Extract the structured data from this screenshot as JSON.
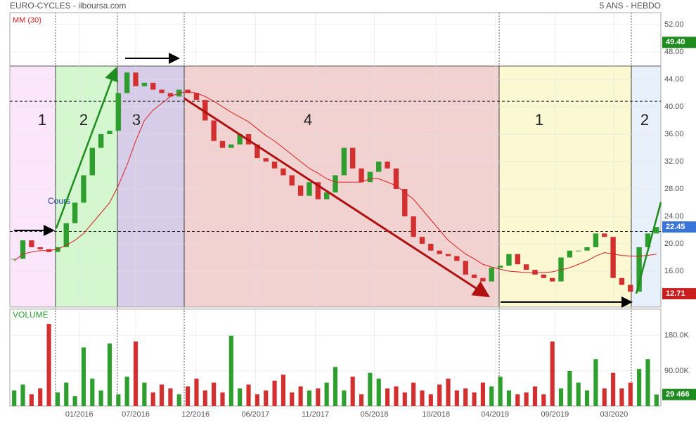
{
  "chart_data": [
    {
      "type": "candlestick",
      "title": "EURO-CYCLES - ilboursa.com",
      "subtitle": "5 ANS - HEBDO",
      "xlim": [
        0,
        75
      ],
      "xticks": [
        {
          "value": 8.0,
          "label": "01/2016"
        },
        {
          "value": 14.5,
          "label": "07/2016"
        },
        {
          "value": 21.4,
          "label": "12/2016"
        },
        {
          "value": 28.3,
          "label": "06/2017"
        },
        {
          "value": 35.2,
          "label": "11/2017"
        },
        {
          "value": 42.0,
          "label": "05/2018"
        },
        {
          "value": 49.1,
          "label": "10/2018"
        },
        {
          "value": 55.9,
          "label": "04/2019"
        },
        {
          "value": 62.8,
          "label": "09/2019"
        },
        {
          "value": 69.6,
          "label": "03/2020"
        }
      ],
      "ylim": [
        10.77,
        53.74
      ],
      "yticks": [
        {
          "value": 16,
          "label": "16.00"
        },
        {
          "value": 20,
          "label": "20.00"
        },
        {
          "value": 24,
          "label": "24.00"
        },
        {
          "value": 28,
          "label": "28.00"
        },
        {
          "value": 32,
          "label": "32.00"
        },
        {
          "value": 36,
          "label": "36.00"
        },
        {
          "value": 40,
          "label": "40.00"
        },
        {
          "value": 44,
          "label": "44.00"
        },
        {
          "value": 48,
          "label": "48.00"
        },
        {
          "value": 52,
          "label": "52.00"
        }
      ],
      "series": [
        {
          "name": "Cours",
          "color": "#2e9e2e",
          "down_color": "#d23030",
          "values": [
            17.8,
            20.5,
            19.5,
            19.2,
            18.8,
            19.5,
            23,
            26,
            30,
            34,
            36,
            36.5,
            42,
            45,
            43,
            43.5,
            42.5,
            42,
            41.5,
            42.5,
            42,
            41,
            38,
            35,
            34,
            34.5,
            36,
            34.5,
            32.5,
            32,
            31,
            30,
            28.5,
            27,
            29,
            26.5,
            27.5,
            30,
            34,
            31,
            29,
            30.5,
            32,
            31,
            28,
            24,
            21,
            20,
            19,
            18.5,
            18.2,
            17.5,
            15.5,
            15,
            14.5,
            16.5,
            16.8,
            18.5,
            17,
            16.2,
            15.5,
            15,
            14.5,
            18,
            19,
            19,
            19.5,
            21.5,
            21,
            15,
            14,
            13,
            19.5,
            21.5,
            22.45
          ]
        },
        {
          "name": "MM (30)",
          "color": "#d62020",
          "values": [
            17.5,
            18.5,
            18.8,
            19,
            19,
            19.2,
            19.8,
            20.5,
            21.5,
            23,
            24.5,
            26,
            28.5,
            31.5,
            35,
            38,
            39.5,
            40.5,
            41.5,
            42,
            42.2,
            42,
            41.5,
            40.8,
            40,
            39.2,
            38.5,
            37.8,
            36.8,
            35.8,
            35,
            34,
            33,
            32,
            31,
            30.3,
            29.5,
            29,
            29,
            29,
            29,
            29.5,
            29.5,
            29,
            28.5,
            27.5,
            26.5,
            25,
            23.5,
            22,
            20.5,
            19.5,
            18.5,
            17.8,
            17,
            16.6,
            16.3,
            16,
            15.9,
            15.8,
            15.8,
            15.8,
            15.9,
            16.2,
            16.5,
            17,
            17.5,
            18.2,
            18.7,
            18.5,
            18.3,
            18.2,
            18.2,
            18.3,
            18.5
          ]
        }
      ],
      "zones": [
        {
          "label": "1",
          "color": "#fbe6fb"
        },
        {
          "label": "2",
          "color": "#d4f7d0"
        },
        {
          "label": "3",
          "color": "#d8cde8"
        },
        {
          "label": "4",
          "color": "#f1d2d0"
        },
        {
          "label": "1",
          "color": "#fbf8d2"
        },
        {
          "label": "2",
          "color": "#e8f0fb"
        }
      ],
      "reference_lines": [
        40.8,
        21.8
      ],
      "markers": [
        {
          "value": 49.4,
          "label": "49.40",
          "color": "#1e8c1e"
        },
        {
          "value": 22.45,
          "label": "22.45",
          "color": "#3a74d8"
        },
        {
          "value": 12.71,
          "label": "12.71",
          "color": "#c81e1e"
        }
      ]
    },
    {
      "type": "bar",
      "title": "VOLUME",
      "color": "#2e9e2e",
      "down_color": "#d23030",
      "ylim": [
        0,
        248000
      ],
      "yticks": [
        {
          "value": 90000,
          "label": "90.00K"
        },
        {
          "value": 180000,
          "label": "180.0K"
        }
      ],
      "values": [
        40000,
        55000,
        30000,
        45000,
        210000,
        35000,
        60000,
        25000,
        150000,
        70000,
        40000,
        160000,
        30000,
        75000,
        165000,
        60000,
        35000,
        55000,
        45000,
        30000,
        50000,
        70000,
        40000,
        60000,
        35000,
        180000,
        45000,
        55000,
        30000,
        40000,
        65000,
        80000,
        35000,
        50000,
        40000,
        45000,
        60000,
        100000,
        40000,
        75000,
        30000,
        85000,
        70000,
        45000,
        50000,
        35000,
        60000,
        40000,
        30000,
        55000,
        70000,
        40000,
        45000,
        35000,
        60000,
        50000,
        75000,
        40000,
        30000,
        35000,
        50000,
        30000,
        165000,
        45000,
        90000,
        60000,
        40000,
        120000,
        45000,
        85000,
        45000,
        60000,
        95000,
        120000,
        29466
      ],
      "markers": [
        {
          "value": 29466,
          "label": "29 466",
          "color": "#1e8c1e"
        }
      ]
    }
  ]
}
